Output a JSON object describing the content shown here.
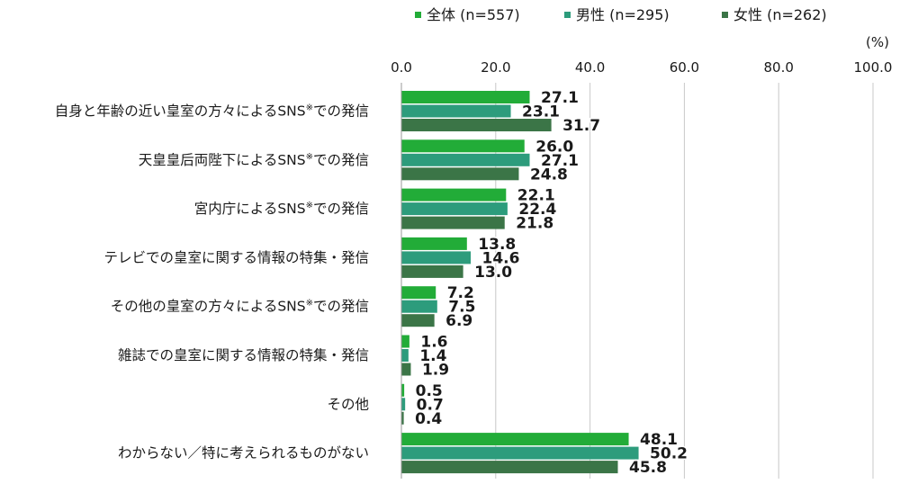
{
  "chart_data": {
    "type": "bar",
    "orientation": "horizontal",
    "unit": "(%)",
    "xlim": [
      0,
      100
    ],
    "ticks": [
      "0.0",
      "20.0",
      "40.0",
      "60.0",
      "80.0",
      "100.0"
    ],
    "grid": true,
    "legend_position": "top-right",
    "categories": [
      "自身と年齢の近い皇室の方々によるSNS※での発信",
      "天皇皇后両陛下によるSNS※での発信",
      "宮内庁によるSNS※での発信",
      "テレビでの皇室に関する情報の特集・発信",
      "その他の皇室の方々によるSNS※での発信",
      "雑誌での皇室に関する情報の特集・発信",
      "その他",
      "わからない／特に考えられるものがない"
    ],
    "series": [
      {
        "name": "全体 (n=557)",
        "color": "#22ac38",
        "values": [
          27.1,
          26.0,
          22.1,
          13.8,
          7.2,
          1.6,
          0.5,
          48.1
        ]
      },
      {
        "name": "男性 (n=295)",
        "color": "#2d9c7c",
        "values": [
          23.1,
          27.1,
          22.4,
          14.6,
          7.5,
          1.4,
          0.7,
          50.2
        ]
      },
      {
        "name": "女性 (n=262)",
        "color": "#3b7547",
        "values": [
          31.7,
          24.8,
          21.8,
          13.0,
          6.9,
          1.9,
          0.4,
          45.8
        ]
      }
    ]
  }
}
